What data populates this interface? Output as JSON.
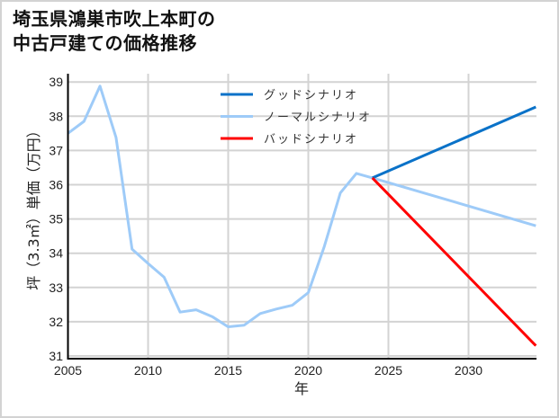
{
  "title": {
    "line1": "埼玉県鴻巣市吹上本町の",
    "line2": "中古戸建ての価格推移"
  },
  "legend": {
    "items": [
      {
        "label": "グッドシナリオ",
        "color": "#0a72c8"
      },
      {
        "label": "ノーマルシナリオ",
        "color": "#9ecbf8"
      },
      {
        "label": "バッドシナリオ",
        "color": "#ff0000"
      }
    ]
  },
  "axes": {
    "xlabel": "年",
    "ylabel": "坪（3.3㎡）単価（万円）",
    "xticks": [
      "2005",
      "2010",
      "2015",
      "2020",
      "2025",
      "2030"
    ],
    "yticks": [
      "31",
      "32",
      "33",
      "34",
      "35",
      "36",
      "37",
      "38",
      "39"
    ]
  },
  "chart_data": {
    "type": "line",
    "title": "埼玉県鴻巣市吹上本町の中古戸建ての価格推移",
    "xlabel": "年",
    "ylabel": "坪（3.3㎡）単価（万円）",
    "xlim": [
      2005,
      2034.2
    ],
    "ylim": [
      31,
      39.25
    ],
    "grid": true,
    "legend_position": "upper center",
    "series": [
      {
        "name": "ノーマルシナリオ",
        "color": "#9ecbf8",
        "x": [
          2005,
          2006,
          2007,
          2008,
          2009,
          2010,
          2011,
          2012,
          2013,
          2014,
          2015,
          2016,
          2017,
          2018,
          2019,
          2020,
          2021,
          2022,
          2023,
          2024,
          2034.2
        ],
        "values": [
          37.5,
          37.85,
          38.88,
          37.38,
          34.12,
          33.7,
          33.3,
          32.28,
          32.35,
          32.15,
          31.85,
          31.9,
          32.24,
          32.37,
          32.48,
          32.85,
          34.2,
          35.76,
          36.33,
          36.2,
          34.8
        ]
      },
      {
        "name": "グッドシナリオ",
        "color": "#0a72c8",
        "x": [
          2024,
          2034.2
        ],
        "values": [
          36.2,
          38.27
        ]
      },
      {
        "name": "バッドシナリオ",
        "color": "#ff0000",
        "x": [
          2024,
          2034.2
        ],
        "values": [
          36.2,
          31.3
        ]
      }
    ]
  }
}
